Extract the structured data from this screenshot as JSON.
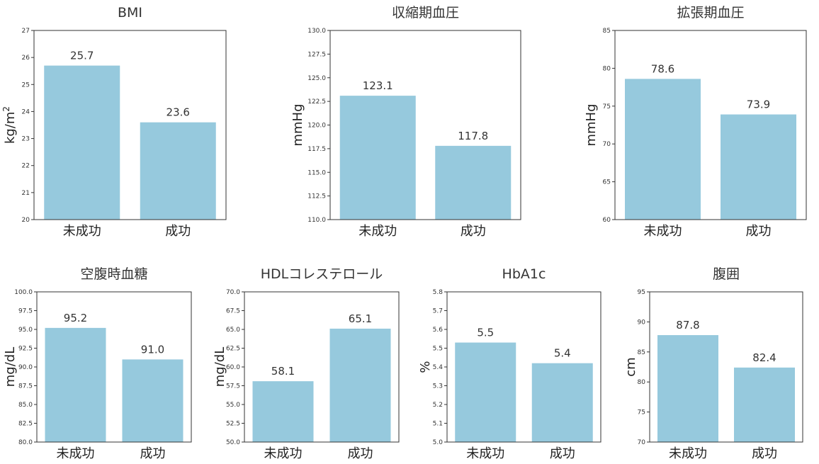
{
  "bar_color": "#96c9dd",
  "axis_color": "#333333",
  "chart_data": [
    {
      "type": "bar",
      "title": "BMI",
      "ylabel": "kg/m",
      "ylabel_sup": "2",
      "categories": [
        "未成功",
        "成功"
      ],
      "values": [
        25.7,
        23.6
      ],
      "value_labels": [
        "25.7",
        "23.6"
      ],
      "ylim": [
        20,
        27
      ],
      "yticks": [
        "20",
        "21",
        "22",
        "23",
        "24",
        "25",
        "26",
        "27"
      ]
    },
    {
      "type": "bar",
      "title": "収縮期血圧",
      "ylabel": "mmHg",
      "categories": [
        "未成功",
        "成功"
      ],
      "values": [
        123.1,
        117.8
      ],
      "value_labels": [
        "123.1",
        "117.8"
      ],
      "ylim": [
        110,
        130
      ],
      "yticks": [
        "110.0",
        "112.5",
        "115.0",
        "117.5",
        "120.0",
        "122.5",
        "125.0",
        "127.5",
        "130.0"
      ]
    },
    {
      "type": "bar",
      "title": "拡張期血圧",
      "ylabel": "mmHg",
      "categories": [
        "未成功",
        "成功"
      ],
      "values": [
        78.6,
        73.9
      ],
      "value_labels": [
        "78.6",
        "73.9"
      ],
      "ylim": [
        60,
        85
      ],
      "yticks": [
        "60",
        "65",
        "70",
        "75",
        "80",
        "85"
      ]
    },
    {
      "type": "bar",
      "title": "空腹時血糖",
      "ylabel": "mg/dL",
      "categories": [
        "未成功",
        "成功"
      ],
      "values": [
        95.2,
        91.0
      ],
      "value_labels": [
        "95.2",
        "91.0"
      ],
      "ylim": [
        80,
        100
      ],
      "yticks": [
        "80.0",
        "82.5",
        "85.0",
        "87.5",
        "90.0",
        "92.5",
        "95.0",
        "97.5",
        "100.0"
      ]
    },
    {
      "type": "bar",
      "title": "HDLコレステロール",
      "ylabel": "mg/dL",
      "categories": [
        "未成功",
        "成功"
      ],
      "values": [
        58.1,
        65.1
      ],
      "value_labels": [
        "58.1",
        "65.1"
      ],
      "ylim": [
        50,
        70
      ],
      "yticks": [
        "50.0",
        "52.5",
        "55.0",
        "57.5",
        "60.0",
        "62.5",
        "65.0",
        "67.5",
        "70.0"
      ]
    },
    {
      "type": "bar",
      "title": "HbA1c",
      "ylabel": "%",
      "categories": [
        "未成功",
        "成功"
      ],
      "values": [
        5.53,
        5.42
      ],
      "value_labels": [
        "5.5",
        "5.4"
      ],
      "ylim": [
        5.0,
        5.8
      ],
      "yticks": [
        "5.0",
        "5.1",
        "5.2",
        "5.3",
        "5.4",
        "5.5",
        "5.6",
        "5.7",
        "5.8"
      ]
    },
    {
      "type": "bar",
      "title": "腹囲",
      "ylabel": "cm",
      "categories": [
        "未成功",
        "成功"
      ],
      "values": [
        87.8,
        82.4
      ],
      "value_labels": [
        "87.8",
        "82.4"
      ],
      "ylim": [
        70,
        95
      ],
      "yticks": [
        "70",
        "75",
        "80",
        "85",
        "90",
        "95"
      ]
    }
  ]
}
